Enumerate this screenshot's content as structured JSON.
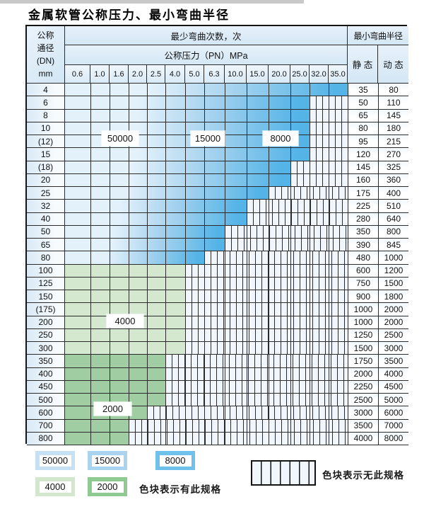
{
  "title": "金属软管公称压力、最小弯曲半径",
  "table": {
    "header": {
      "dn_label_lines": [
        "公称",
        "通径",
        "(DN)",
        "mm"
      ],
      "bend_cycles_label": "最少弯曲次数，次",
      "pressure_label": "公称压力（PN）MPa",
      "radius_label": "最小弯曲半径",
      "static_label": "静 态",
      "dynamic_label": "动 态",
      "pressure_columns": [
        "0.6",
        "1.0",
        "1.6",
        "2.0",
        "2.5",
        "4.0",
        "5.0",
        "6.3",
        "10.0",
        "15.0",
        "20.0",
        "25.0",
        "32.0",
        "35.0"
      ]
    },
    "blue_cycle_bands_by_pressure": {
      "50000": [
        "0.6",
        "2.5"
      ],
      "15000": [
        "4.0",
        "6.3"
      ],
      "8000": [
        "10.0",
        "35.0"
      ]
    },
    "rows": [
      {
        "dn": "4",
        "band": "blue",
        "max_pn": "35.0",
        "static": "35",
        "dynamic": "80"
      },
      {
        "dn": "6",
        "band": "blue",
        "max_pn": "25.0",
        "static": "50",
        "dynamic": "110"
      },
      {
        "dn": "8",
        "band": "blue",
        "max_pn": "25.0",
        "static": "65",
        "dynamic": "145"
      },
      {
        "dn": "10",
        "band": "blue",
        "max_pn": "25.0",
        "static": "80",
        "dynamic": "180"
      },
      {
        "dn": "(12)",
        "band": "blue",
        "max_pn": "25.0",
        "static": "95",
        "dynamic": "215"
      },
      {
        "dn": "15",
        "band": "blue",
        "max_pn": "25.0",
        "static": "120",
        "dynamic": "270"
      },
      {
        "dn": "(18)",
        "band": "blue",
        "max_pn": "20.0",
        "static": "145",
        "dynamic": "325"
      },
      {
        "dn": "20",
        "band": "blue",
        "max_pn": "20.0",
        "static": "160",
        "dynamic": "360"
      },
      {
        "dn": "25",
        "band": "blue",
        "max_pn": "15.0",
        "static": "175",
        "dynamic": "400"
      },
      {
        "dn": "32",
        "band": "blue",
        "max_pn": "10.0",
        "static": "225",
        "dynamic": "510"
      },
      {
        "dn": "40",
        "band": "blue",
        "max_pn": "10.0",
        "static": "280",
        "dynamic": "640"
      },
      {
        "dn": "50",
        "band": "blue",
        "max_pn": "6.3",
        "static": "350",
        "dynamic": "800"
      },
      {
        "dn": "65",
        "band": "blue",
        "max_pn": "6.3",
        "static": "390",
        "dynamic": "845"
      },
      {
        "dn": "80",
        "band": "blue",
        "max_pn": "5.0",
        "static": "480",
        "dynamic": "1000"
      },
      {
        "dn": "100",
        "band": "g4000",
        "max_pn": "4.0",
        "static": "600",
        "dynamic": "1200"
      },
      {
        "dn": "125",
        "band": "g4000",
        "max_pn": "4.0",
        "static": "750",
        "dynamic": "1500"
      },
      {
        "dn": "150",
        "band": "g4000",
        "max_pn": "4.0",
        "static": "900",
        "dynamic": "1800"
      },
      {
        "dn": "(175)",
        "band": "g4000",
        "max_pn": "4.0",
        "static": "1000",
        "dynamic": "2000"
      },
      {
        "dn": "200",
        "band": "g4000",
        "max_pn": "4.0",
        "static": "1000",
        "dynamic": "2000"
      },
      {
        "dn": "250",
        "band": "g4000",
        "max_pn": "4.0",
        "static": "1250",
        "dynamic": "2500"
      },
      {
        "dn": "300",
        "band": "g4000",
        "max_pn": "4.0",
        "static": "1500",
        "dynamic": "3000"
      },
      {
        "dn": "350",
        "band": "g2000",
        "max_pn": "2.5",
        "static": "1750",
        "dynamic": "3500"
      },
      {
        "dn": "400",
        "band": "g2000",
        "max_pn": "2.5",
        "static": "2000",
        "dynamic": "4000"
      },
      {
        "dn": "450",
        "band": "g2000",
        "max_pn": "2.5",
        "static": "2250",
        "dynamic": "4500"
      },
      {
        "dn": "500",
        "band": "g2000",
        "max_pn": "2.5",
        "static": "2500",
        "dynamic": "5000"
      },
      {
        "dn": "600",
        "band": "g2000",
        "max_pn": "2.0",
        "static": "3000",
        "dynamic": "6000"
      },
      {
        "dn": "700",
        "band": "g2000",
        "max_pn": "1.6",
        "static": "3500",
        "dynamic": "7000"
      },
      {
        "dn": "800",
        "band": "g2000",
        "max_pn": "1.6",
        "static": "4000",
        "dynamic": "8000"
      }
    ]
  },
  "overlay_labels": [
    "50000",
    "15000",
    "8000",
    "4000",
    "2000"
  ],
  "legend": {
    "chips": [
      {
        "label": "50000",
        "color": "#c7e1f4"
      },
      {
        "label": "15000",
        "color": "#a9d4ef"
      },
      {
        "label": "8000",
        "color": "#6fc0ea"
      },
      {
        "label": "4000",
        "color": "#d3e7cf"
      },
      {
        "label": "2000",
        "color": "#8fca92"
      }
    ],
    "has_spec_text": "色块表示有此规格",
    "no_spec_text": "色块表示无此规格"
  },
  "colors": {
    "blue_gradient_start": "#e3f1fb",
    "blue_gradient_mid": "#a9d4ef",
    "blue_gradient_end": "#55b4e7",
    "green_4000": "#d4e7cf",
    "green_2000": "#a0cda1",
    "stripe_bg": "#f0f6fb",
    "grid_line": "#2b2b2b",
    "header_bg": "#d7e9f6"
  }
}
